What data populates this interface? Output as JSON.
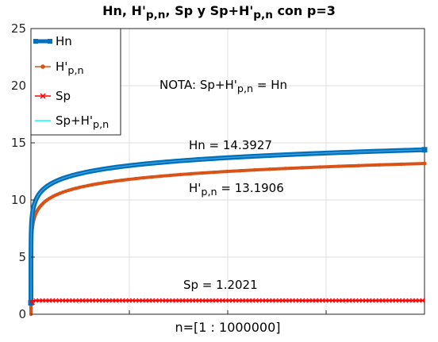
{
  "chart_data": {
    "type": "line",
    "title": {
      "parts": [
        {
          "text": "Hn, H'",
          "sub": false
        },
        {
          "text": "p,n",
          "sub": true
        },
        {
          "text": ", Sp y Sp+H'",
          "sub": false
        },
        {
          "text": "p,n",
          "sub": true
        },
        {
          "text": " con p=3",
          "sub": false
        }
      ]
    },
    "xlabel": "n=[1 : 1000000]",
    "ylabel": "",
    "xlim": [
      1,
      1000000
    ],
    "ylim": [
      0,
      25
    ],
    "yticks": [
      "0",
      "5",
      "10",
      "15",
      "20",
      "25"
    ],
    "xticks_count": 4,
    "grid": true,
    "legend_position": "top-left",
    "colors": {
      "Hn": "#0072BD",
      "Hpn": "#D95319",
      "Sp": "#FF0000",
      "SpHpn": "#00FFFF"
    },
    "series": [
      {
        "key": "Hn",
        "name": {
          "parts": [
            {
              "text": "Hn",
              "sub": false
            }
          ]
        },
        "marker": "square",
        "final_value": 14.3927,
        "x": [
          1,
          2,
          5,
          10,
          100,
          1000,
          10000,
          100000,
          1000000
        ],
        "values": [
          1.0,
          1.5,
          2.2833,
          2.929,
          5.1874,
          7.4855,
          9.7876,
          12.0901,
          14.3927
        ]
      },
      {
        "key": "Hpn",
        "name": {
          "parts": [
            {
              "text": "H'",
              "sub": false
            },
            {
              "text": "p,n",
              "sub": true
            }
          ]
        },
        "marker": "circle",
        "final_value": 13.1906,
        "x": [
          1,
          2,
          5,
          10,
          100,
          1000,
          10000,
          100000,
          1000000
        ],
        "values": [
          0.0,
          0.375,
          1.0977,
          1.7315,
          3.9853,
          6.2834,
          8.5855,
          10.888,
          13.1906
        ]
      },
      {
        "key": "Sp",
        "name": {
          "parts": [
            {
              "text": "Sp",
              "sub": false
            }
          ]
        },
        "marker": "x",
        "final_value": 1.2021,
        "x": [
          1,
          2,
          5,
          10,
          100,
          1000,
          10000,
          100000,
          1000000
        ],
        "values": [
          1.0,
          1.125,
          1.1856,
          1.1975,
          1.202,
          1.2021,
          1.2021,
          1.2021,
          1.2021
        ]
      },
      {
        "key": "SpHpn",
        "name": {
          "parts": [
            {
              "text": "Sp+H'",
              "sub": false
            },
            {
              "text": "p,n",
              "sub": true
            }
          ]
        },
        "marker": "none",
        "final_value": 14.3927,
        "x": [
          1,
          2,
          5,
          10,
          100,
          1000,
          10000,
          100000,
          1000000
        ],
        "values": [
          1.0,
          1.5,
          2.2833,
          2.929,
          5.1874,
          7.4855,
          9.7876,
          12.0901,
          14.3927
        ]
      }
    ],
    "annotations": [
      {
        "key": "note",
        "parts": [
          {
            "text": "NOTA: Sp+H'",
            "sub": false
          },
          {
            "text": "p,n",
            "sub": true
          },
          {
            "text": " = Hn",
            "sub": false
          }
        ]
      },
      {
        "key": "hn",
        "parts": [
          {
            "text": "Hn = 14.3927",
            "sub": false
          }
        ]
      },
      {
        "key": "hpn",
        "parts": [
          {
            "text": "H'",
            "sub": false
          },
          {
            "text": "p,n",
            "sub": true
          },
          {
            "text": " = 13.1906",
            "sub": false
          }
        ]
      },
      {
        "key": "sp",
        "parts": [
          {
            "text": "Sp = 1.2021",
            "sub": false
          }
        ]
      }
    ]
  }
}
